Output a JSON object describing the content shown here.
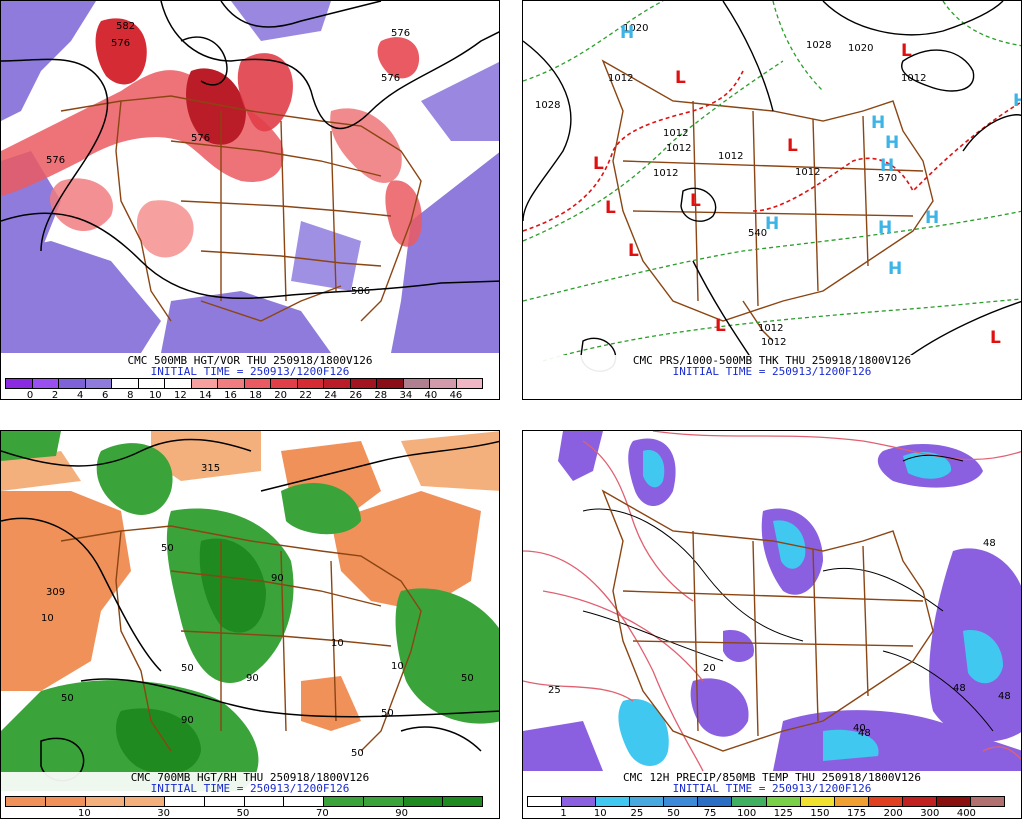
{
  "panels": [
    {
      "caption_line1": "CMC 500MB HGT/VOR THU 250918/1800V126",
      "caption_line2": "INITIAL TIME = 250913/1200F126",
      "colorbar": {
        "colors": [
          "#8a2be2",
          "#9a4ff0",
          "#7d62d8",
          "#8e7bdc",
          "#ffffff",
          "#ffffff",
          "#ffffff",
          "#f6a0a0",
          "#f07d80",
          "#ea5a62",
          "#e03e48",
          "#d42b35",
          "#bb1d28",
          "#a11420",
          "#8a0d18",
          "#b08090",
          "#d29aaa",
          "#f1b6c4"
        ],
        "labels": [
          "0",
          "2",
          "4",
          "6",
          "8",
          "10",
          "12",
          "14",
          "16",
          "18",
          "20",
          "22",
          "24",
          "26",
          "28",
          "34",
          "40",
          "46"
        ]
      },
      "contour_labels": [
        "576",
        "576",
        "576",
        "576",
        "576",
        "586",
        "582"
      ]
    },
    {
      "caption_line1": "CMC PRS/1000-500MB THK THU 250918/1800V126",
      "caption_line2": "INITIAL TIME = 250913/1200F126",
      "contour_labels": [
        "1028",
        "1028",
        "1020",
        "1012",
        "1012",
        "1012",
        "1012",
        "1012",
        "1012",
        "1012",
        "1020",
        "540",
        "570",
        "1012",
        "1012"
      ],
      "highs": [
        "H",
        "H",
        "H",
        "H",
        "H",
        "H",
        "H",
        "H",
        "H"
      ],
      "lows": [
        "L",
        "L",
        "L",
        "L",
        "L",
        "L",
        "L",
        "L",
        "L"
      ]
    },
    {
      "caption_line1": "CMC 700MB HGT/RH THU 250918/1800V126",
      "caption_line2": "INITIAL TIME = 250913/1200F126",
      "colorbar": {
        "colors": [
          "#f0915a",
          "#f0915a",
          "#f4b07c",
          "#f4b07c",
          "#ffffff",
          "#ffffff",
          "#ffffff",
          "#ffffff",
          "#3aa33a",
          "#3aa33a",
          "#1f8a1f",
          "#1f8a1f"
        ],
        "labels": [
          "10",
          "30",
          "50",
          "70",
          "90"
        ]
      },
      "contour_labels": [
        "315",
        "309",
        "10",
        "50",
        "50",
        "90",
        "90",
        "50",
        "10",
        "50",
        "50",
        "90",
        "50",
        "10"
      ]
    },
    {
      "caption_line1": "CMC 12H PRECIP/850MB TEMP THU 250918/1800V126",
      "caption_line2": "INITIAL TIME = 250913/1200F126",
      "colorbar": {
        "colors": [
          "#ffffff",
          "#8a60e0",
          "#40c8f0",
          "#48a8e0",
          "#3c8ad8",
          "#2a6fc4",
          "#40b060",
          "#7bd04a",
          "#f0e030",
          "#f0a030",
          "#e04020",
          "#c02020",
          "#8a1010",
          "#b07070"
        ],
        "labels": [
          "1",
          "10",
          "25",
          "50",
          "75",
          "100",
          "125",
          "150",
          "175",
          "200",
          "300",
          "400"
        ]
      },
      "contour_labels": [
        "25",
        "48",
        "48",
        "40",
        "48",
        "48",
        "20"
      ]
    }
  ]
}
